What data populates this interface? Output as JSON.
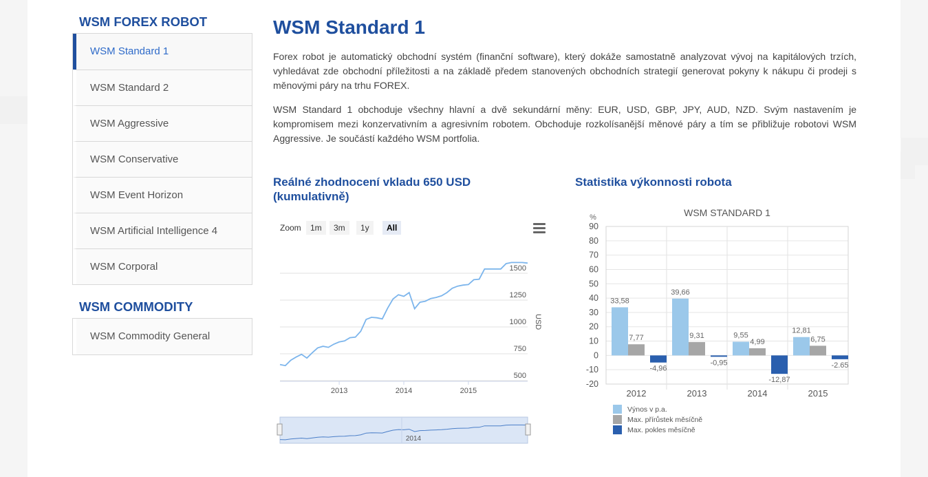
{
  "sidebar": {
    "forex_heading": "WSM FOREX ROBOT",
    "forex_items": [
      {
        "label": "WSM Standard 1"
      },
      {
        "label": "WSM Standard 2"
      },
      {
        "label": "WSM Aggressive"
      },
      {
        "label": "WSM Conservative"
      },
      {
        "label": "WSM Event Horizon"
      },
      {
        "label": "WSM Artificial Intelligence 4"
      },
      {
        "label": "WSM Corporal"
      }
    ],
    "commodity_heading": "WSM COMMODITY",
    "commodity_items": [
      {
        "label": "WSM Commodity General"
      }
    ]
  },
  "main": {
    "title": "WSM Standard 1",
    "paragraph1": "Forex robot je automatický obchodní systém (finanční software), který dokáže samostatně analyzovat vývoj na kapitálových trzích, vyhledávat zde obchodní příležitosti a na základě předem stanovených obchodních strategií generovat pokyny k nákupu či prodeji s měnovými páry na trhu FOREX.",
    "paragraph2": "WSM Standard 1 obchoduje všechny hlavní a dvě sekundární měny: EUR, USD, GBP, JPY, AUD, NZD. Svým nastavením je kompromisem mezi konzervativním a agresivním robotem. Obchoduje rozkolísanější měnové páry a tím se přibližuje robotovi WSM Aggressive. Je součástí každého WSM portfolia.",
    "chart_left_title": "Reálné zhodnocení vkladu 650 USD (kumulativně)",
    "chart_right_title": "Statistika výkonnosti robota"
  },
  "stock_chart": {
    "zoom_label": "Zoom",
    "buttons": [
      "1m",
      "3m",
      "1y",
      "All"
    ],
    "selected": "All",
    "menu_icon": "hamburger-icon",
    "line_color": "#7cb5ec"
  },
  "chart_data": [
    {
      "type": "line",
      "ylabel": "USD",
      "ylim": [
        500,
        1750
      ],
      "yticks": [
        500,
        750,
        1000,
        1250,
        1500
      ],
      "xticks": [
        "2013",
        "2014",
        "2015"
      ],
      "navigator_label": "2014",
      "x": [
        "2012-02",
        "2012-03",
        "2012-04",
        "2012-05",
        "2012-06",
        "2012-07",
        "2012-08",
        "2012-09",
        "2012-10",
        "2012-11",
        "2012-12",
        "2013-01",
        "2013-02",
        "2013-03",
        "2013-04",
        "2013-05",
        "2013-06",
        "2013-07",
        "2013-08",
        "2013-09",
        "2013-10",
        "2013-11",
        "2013-12",
        "2014-01",
        "2014-02",
        "2014-03",
        "2014-04",
        "2014-05",
        "2014-06",
        "2014-07",
        "2014-08",
        "2014-09",
        "2014-10",
        "2014-11",
        "2014-12",
        "2015-01",
        "2015-02",
        "2015-03",
        "2015-04",
        "2015-05",
        "2015-06",
        "2015-07",
        "2015-08",
        "2015-09",
        "2015-10",
        "2015-11",
        "2015-12"
      ],
      "values": [
        650,
        640,
        690,
        720,
        745,
        710,
        760,
        805,
        820,
        810,
        840,
        860,
        870,
        900,
        905,
        960,
        1070,
        1090,
        1085,
        1075,
        1175,
        1260,
        1300,
        1285,
        1320,
        1170,
        1230,
        1240,
        1265,
        1275,
        1290,
        1320,
        1360,
        1380,
        1390,
        1395,
        1440,
        1445,
        1540,
        1540,
        1540,
        1540,
        1590,
        1600,
        1600,
        1600,
        1595
      ],
      "series": [
        {
          "name": "",
          "color": "#7cb5ec"
        }
      ]
    },
    {
      "type": "bar",
      "title": "WSM STANDARD 1",
      "ylabel": "%",
      "ylim": [
        -20,
        90
      ],
      "yticks": [
        -20,
        -10,
        0,
        10,
        20,
        30,
        40,
        50,
        60,
        70,
        80,
        90
      ],
      "categories": [
        "2012",
        "2013",
        "2014",
        "2015"
      ],
      "series": [
        {
          "name": "Výnos v p.a.",
          "color": "#9bc8ea",
          "values": [
            33.58,
            39.66,
            9.55,
            12.81
          ],
          "labels": [
            "33,58",
            "39,66",
            "9,55",
            "12,81"
          ]
        },
        {
          "name": "Max. přírůstek měsíčně",
          "color": "#a6a6a6",
          "values": [
            7.77,
            9.31,
            4.99,
            6.75
          ],
          "labels": [
            "7,77",
            "9,31",
            "4,99",
            "6,75"
          ]
        },
        {
          "name": "Max. pokles měsíčně",
          "color": "#2a5fae",
          "values": [
            -4.96,
            -0.95,
            -12.87,
            -2.65
          ],
          "labels": [
            "-4,96",
            "-0,95",
            "-12,87",
            "-2.65"
          ]
        }
      ],
      "legend": "bottom-left"
    }
  ]
}
